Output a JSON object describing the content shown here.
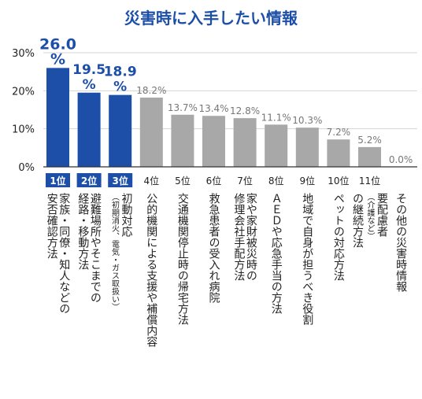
{
  "chart_data": {
    "type": "bar",
    "title": "災害時に入手したい情報",
    "y_ticks": [
      "0%",
      "10%",
      "20%",
      "30%"
    ],
    "ylim": [
      0,
      30
    ],
    "grid": true,
    "colors": {
      "top": "#1d4fa8",
      "other": "#a8a8a8",
      "title": "#1d4fa8"
    },
    "ranks": [
      "1位",
      "2位",
      "3位",
      "4位",
      "5位",
      "6位",
      "7位",
      "8位",
      "9位",
      "10位",
      "11位"
    ],
    "values": [
      26.0,
      19.5,
      18.9,
      18.2,
      13.7,
      13.4,
      12.8,
      11.1,
      10.3,
      7.2,
      5.2,
      0.0
    ],
    "value_labels": [
      [
        "26.0",
        "%"
      ],
      [
        "19.5",
        "%"
      ],
      [
        "18.9",
        "%"
      ],
      [
        "18.2%"
      ],
      [
        "13.7%"
      ],
      [
        "13.4%"
      ],
      [
        "12.8%"
      ],
      [
        "11.1%"
      ],
      [
        "10.3%"
      ],
      [
        "7.2%"
      ],
      [
        "5.2%"
      ],
      [
        "0.0%"
      ]
    ],
    "categories": [
      [
        {
          "t": "家族・同僚・知人などの"
        },
        {
          "t": "安否確認方法"
        }
      ],
      [
        {
          "t": "避難場所やそこまでの"
        },
        {
          "t": "経路・移動方法"
        }
      ],
      [
        {
          "t": "初動対応"
        },
        {
          "t": "（初期消火、電気・ガス取扱い）",
          "small": true
        }
      ],
      [
        {
          "t": "公的機関による支援や補償内容"
        }
      ],
      [
        {
          "t": "交通機関停止時の帰宅方法"
        }
      ],
      [
        {
          "t": "救急患者の受入れ病院"
        }
      ],
      [
        {
          "t": "家や家財被災時の"
        },
        {
          "t": "修理会社手配方法"
        }
      ],
      [
        {
          "t": "ＡＥＤや応急手当の方法"
        }
      ],
      [
        {
          "t": "地域で自身が担うべき役割"
        }
      ],
      [
        {
          "t": "ペットの対応方法"
        }
      ],
      [
        {
          "t": "要配慮者"
        },
        {
          "t": "（介護など）",
          "small": true
        },
        {
          "t": "の継続方法"
        }
      ],
      [
        {
          "t": "その他の災害時情報"
        }
      ]
    ]
  }
}
